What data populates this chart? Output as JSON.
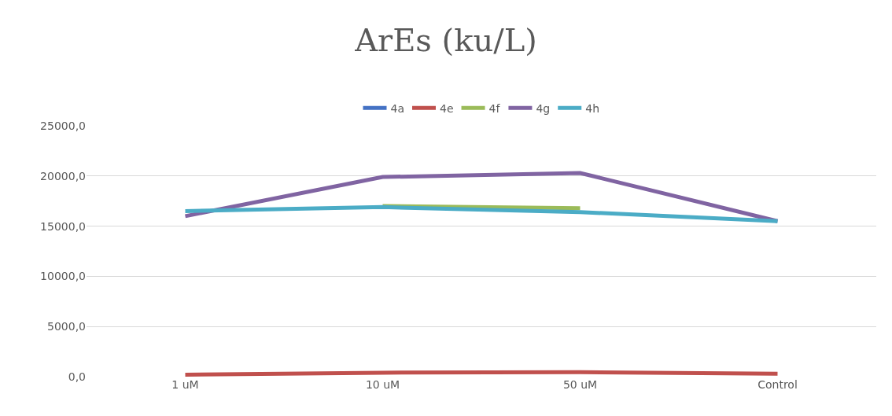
{
  "chart_data": {
    "type": "line",
    "title": "ArEs (ku/L)",
    "categories": [
      "1 uM",
      "10 uM",
      "50 uM",
      "Control"
    ],
    "series": [
      {
        "name": "4a",
        "color": "#4472c4",
        "values": [
          null,
          null,
          null,
          null
        ]
      },
      {
        "name": "4e",
        "color": "#c0504d",
        "values": [
          200,
          400,
          450,
          300
        ]
      },
      {
        "name": "4f",
        "color": "#9bbb59",
        "values": [
          null,
          17000,
          16800,
          null
        ]
      },
      {
        "name": "4g",
        "color": "#8064a2",
        "values": [
          16000,
          19900,
          20300,
          15500
        ]
      },
      {
        "name": "4h",
        "color": "#4bacc6",
        "values": [
          16500,
          16900,
          16400,
          15500
        ]
      }
    ],
    "ylim": [
      0,
      25000
    ],
    "yticks": [
      {
        "value": 0,
        "label": "0,0"
      },
      {
        "value": 5000,
        "label": "5000,0"
      },
      {
        "value": 10000,
        "label": "10000,0"
      },
      {
        "value": 15000,
        "label": "15000,0"
      },
      {
        "value": 20000,
        "label": "20000,0"
      },
      {
        "value": 25000,
        "label": "25000,0"
      }
    ],
    "grid": "y",
    "legend": "top",
    "marker": "none",
    "line_style": "solid"
  }
}
